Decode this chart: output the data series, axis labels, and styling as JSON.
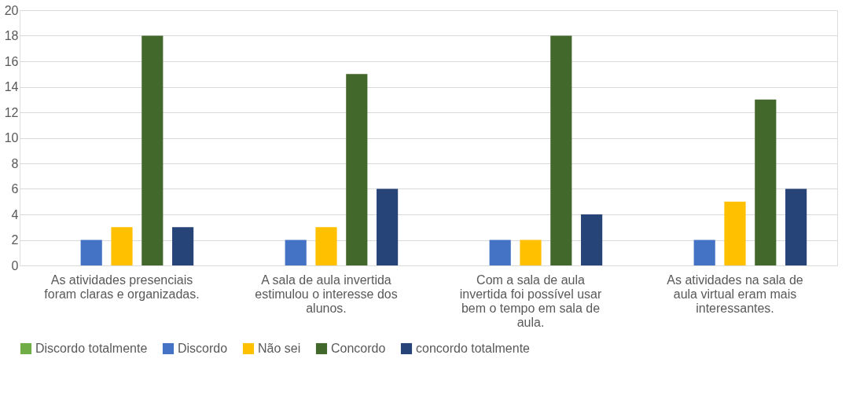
{
  "chart_data": {
    "type": "bar",
    "categories": [
      "As atividades presenciais foram claras e organizadas.",
      "A sala de aula invertida estimulou o interesse dos alunos.",
      "Com a sala de aula invertida foi possível usar bem o tempo em sala de aula.",
      "As atividades na sala de aula virtual eram mais interessantes."
    ],
    "series": [
      {
        "name": "Discordo totalmente",
        "color": "#70ad47",
        "values": [
          0,
          0,
          0,
          0
        ]
      },
      {
        "name": "Discordo",
        "color": "#4472c4",
        "values": [
          2,
          2,
          2,
          2
        ]
      },
      {
        "name": "Não sei",
        "color": "#ffc000",
        "values": [
          3,
          3,
          2,
          5
        ]
      },
      {
        "name": "Concordo",
        "color": "#43682b",
        "values": [
          18,
          15,
          18,
          13
        ]
      },
      {
        "name": "concordo totalmente",
        "color": "#264478",
        "values": [
          3,
          6,
          4,
          6
        ]
      }
    ],
    "ylim": [
      0,
      20
    ],
    "yticks": [
      0,
      2,
      4,
      6,
      8,
      10,
      12,
      14,
      16,
      18,
      20
    ],
    "grid": "y",
    "legend": "bottom"
  }
}
